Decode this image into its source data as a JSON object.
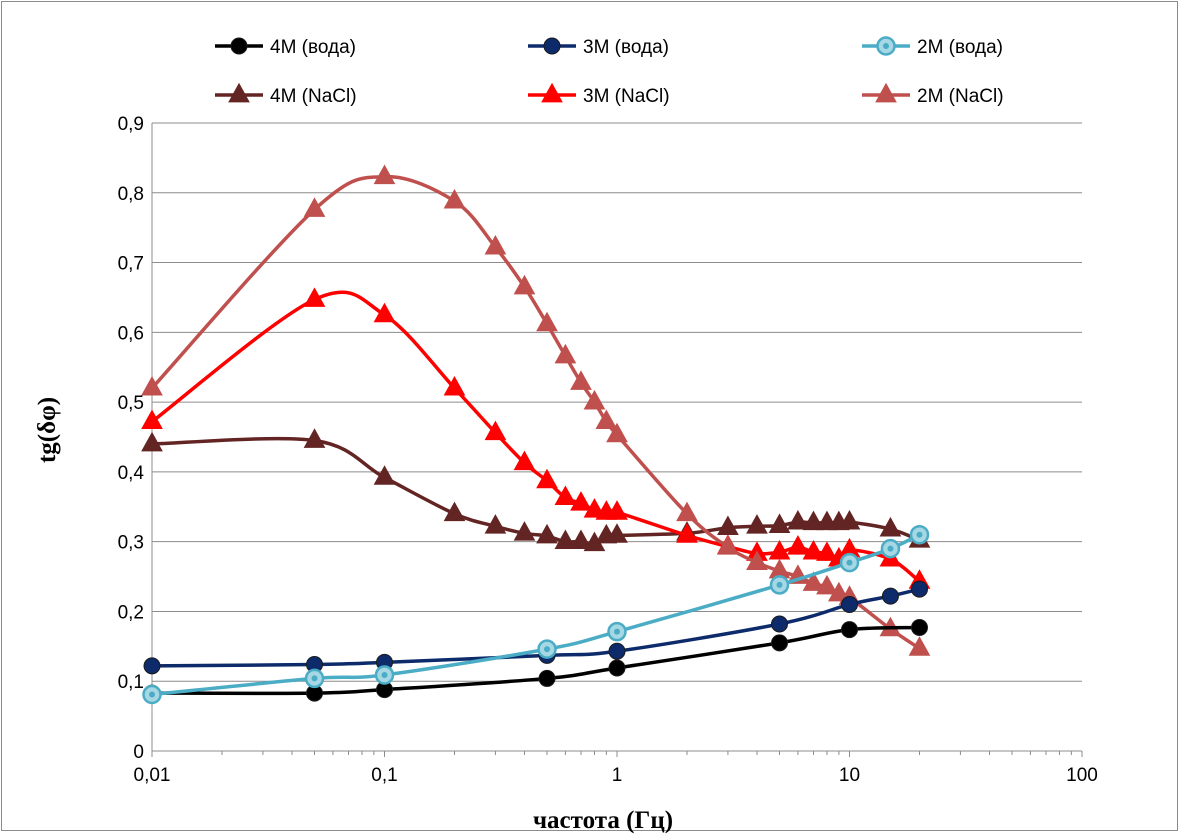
{
  "chart_data": {
    "type": "line",
    "title": "",
    "xlabel": "частота (Гц)",
    "ylabel": "tg(δφ)",
    "x_scale": "log",
    "xlim": [
      0.01,
      100
    ],
    "ylim": [
      0,
      0.9
    ],
    "x_ticks": [
      "0,01",
      "0,1",
      "1",
      "10",
      "100"
    ],
    "y_ticks": [
      "0",
      "0,1",
      "0,2",
      "0,3",
      "0,4",
      "0,5",
      "0,6",
      "0,7",
      "0,8",
      "0,9"
    ],
    "grid": "horizontal",
    "legend_position": "top",
    "series": [
      {
        "name": "4M (вода)",
        "color": "#000000",
        "marker": "circle",
        "x": [
          0.01,
          0.05,
          0.1,
          0.5,
          1,
          5,
          10,
          20
        ],
        "y": [
          0.083,
          0.083,
          0.088,
          0.104,
          0.119,
          0.155,
          0.174,
          0.177
        ]
      },
      {
        "name": "3M (вода)",
        "color": "#0d2b6b",
        "marker": "circle",
        "x": [
          0.01,
          0.05,
          0.1,
          0.5,
          1,
          5,
          10,
          15,
          20
        ],
        "y": [
          0.122,
          0.124,
          0.127,
          0.137,
          0.143,
          0.182,
          0.21,
          0.222,
          0.232
        ]
      },
      {
        "name": "2M (вода)",
        "color": "#4bacc6",
        "marker": "ring",
        "x": [
          0.01,
          0.05,
          0.1,
          0.5,
          1,
          5,
          10,
          15,
          20
        ],
        "y": [
          0.081,
          0.104,
          0.109,
          0.146,
          0.171,
          0.238,
          0.27,
          0.29,
          0.31
        ]
      },
      {
        "name": "4M (NaCl)",
        "color": "#632523",
        "marker": "triangle",
        "x": [
          0.01,
          0.05,
          0.1,
          0.2,
          0.3,
          0.4,
          0.5,
          0.6,
          0.7,
          0.8,
          0.9,
          1,
          2,
          3,
          4,
          5,
          6,
          7,
          8,
          9,
          10,
          15,
          20
        ],
        "y": [
          0.44,
          0.445,
          0.392,
          0.34,
          0.322,
          0.312,
          0.308,
          0.3,
          0.3,
          0.297,
          0.308,
          0.309,
          0.312,
          0.32,
          0.322,
          0.323,
          0.328,
          0.327,
          0.327,
          0.327,
          0.328,
          0.318,
          0.302
        ]
      },
      {
        "name": "3M (NaCl)",
        "color": "#ff0000",
        "marker": "triangle",
        "x": [
          0.01,
          0.05,
          0.1,
          0.2,
          0.3,
          0.4,
          0.5,
          0.6,
          0.7,
          0.8,
          0.9,
          1,
          2,
          3,
          4,
          5,
          6,
          7,
          8,
          9,
          10,
          15,
          20
        ],
        "y": [
          0.472,
          0.647,
          0.625,
          0.52,
          0.456,
          0.413,
          0.387,
          0.363,
          0.355,
          0.345,
          0.342,
          0.342,
          0.309,
          0.293,
          0.283,
          0.285,
          0.292,
          0.285,
          0.283,
          0.275,
          0.288,
          0.275,
          0.243
        ]
      },
      {
        "name": "2M (NaCl)",
        "color": "#c0504d",
        "marker": "triangle",
        "x": [
          0.01,
          0.05,
          0.1,
          0.2,
          0.3,
          0.4,
          0.5,
          0.6,
          0.7,
          0.8,
          0.9,
          1,
          2,
          3,
          4,
          5,
          6,
          7,
          8,
          9,
          10,
          15,
          20
        ],
        "y": [
          0.52,
          0.776,
          0.823,
          0.788,
          0.722,
          0.665,
          0.612,
          0.566,
          0.528,
          0.5,
          0.472,
          0.453,
          0.34,
          0.292,
          0.27,
          0.258,
          0.25,
          0.24,
          0.235,
          0.225,
          0.22,
          0.175,
          0.147
        ]
      }
    ]
  }
}
